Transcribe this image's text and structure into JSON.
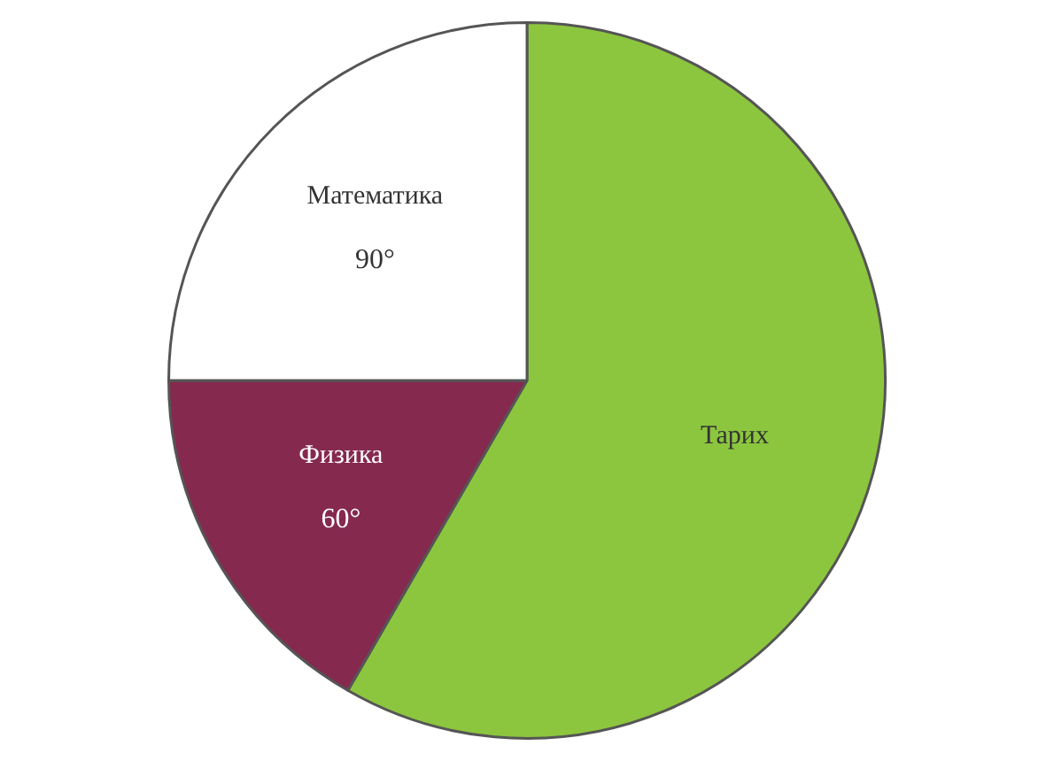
{
  "chart_data": {
    "type": "pie",
    "categories": [
      "Тарих",
      "Физика",
      "Математика"
    ],
    "values": [
      210,
      60,
      90
    ],
    "value_labels": [
      null,
      "60°",
      "90°"
    ],
    "colors": [
      "#8cc63e",
      "#85294f",
      "#ffffff"
    ]
  }
}
